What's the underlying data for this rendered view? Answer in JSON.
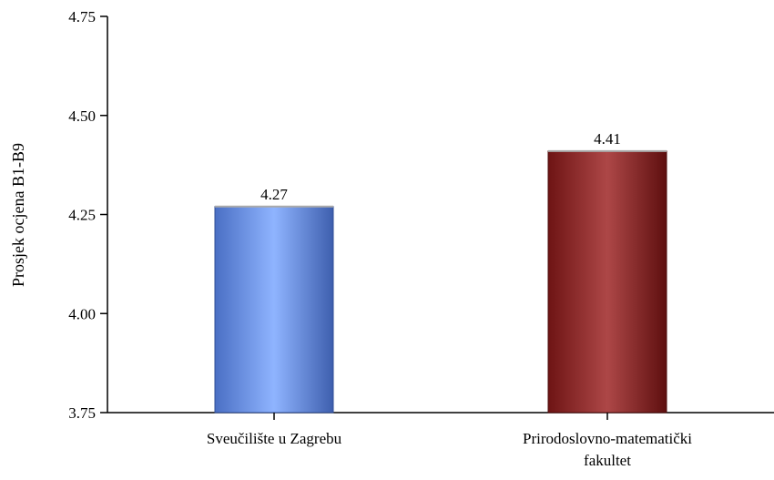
{
  "chart_data": {
    "type": "bar",
    "title": "",
    "xlabel": "",
    "ylabel": "Prosjek ocjena B1-B9",
    "ylim": [
      3.75,
      4.75
    ],
    "yticks": [
      "3.75",
      "4.00",
      "4.25",
      "4.50",
      "4.75"
    ],
    "yticks_values": [
      3.75,
      4.0,
      4.25,
      4.5,
      4.75
    ],
    "categories": [
      [
        "Sveučilište u Zagrebu"
      ],
      [
        "Prirodoslovno-matematički",
        "fakultet"
      ]
    ],
    "values": [
      4.27,
      4.41
    ],
    "data_labels": [
      "4.27",
      "4.41"
    ],
    "colors": [
      "#7fa4f0",
      "#9e3232"
    ],
    "grid": false,
    "legend": "none"
  }
}
